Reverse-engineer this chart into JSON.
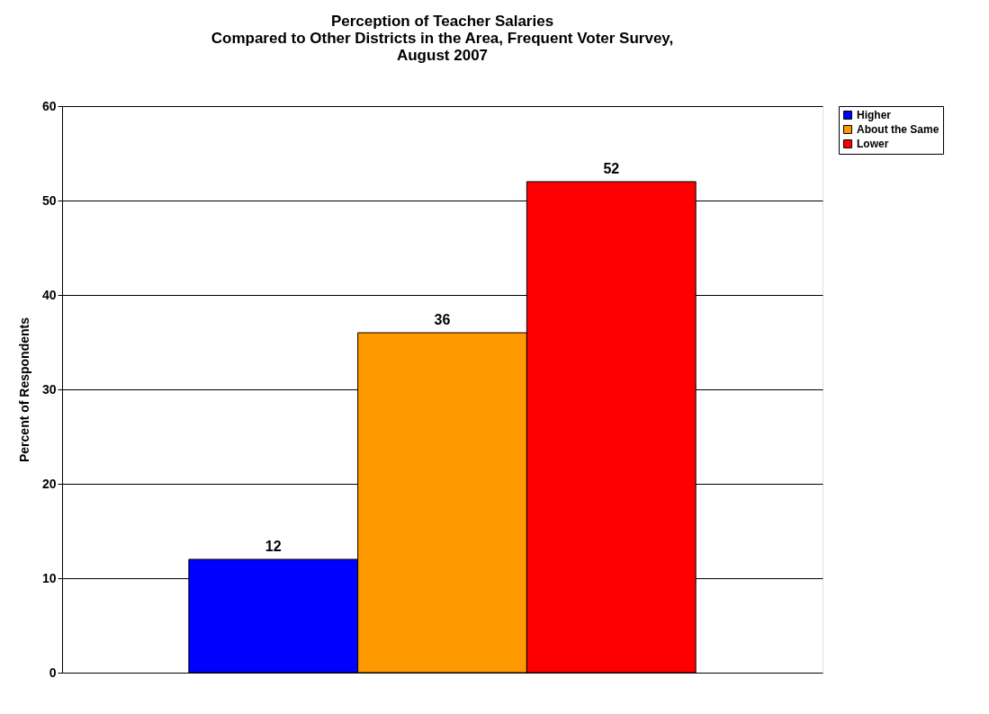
{
  "chart_data": {
    "type": "bar",
    "title": "Perception of Teacher Salaries\nCompared to Other Districts in the Area, Frequent Voter Survey,\nAugust 2007",
    "ylabel": "Percent of Respondents",
    "categories": [
      null
    ],
    "series": [
      {
        "name": "Higher",
        "color": "#0000ff",
        "values": [
          12
        ]
      },
      {
        "name": "About the Same",
        "color": "#ff9900",
        "values": [
          36
        ]
      },
      {
        "name": "Lower",
        "color": "#ff0000",
        "values": [
          52
        ]
      }
    ],
    "ylim": [
      0,
      60
    ],
    "yticks": [
      0,
      10,
      20,
      30,
      40,
      50,
      60
    ],
    "grid": "y",
    "legend": "right",
    "data_labels": true
  }
}
